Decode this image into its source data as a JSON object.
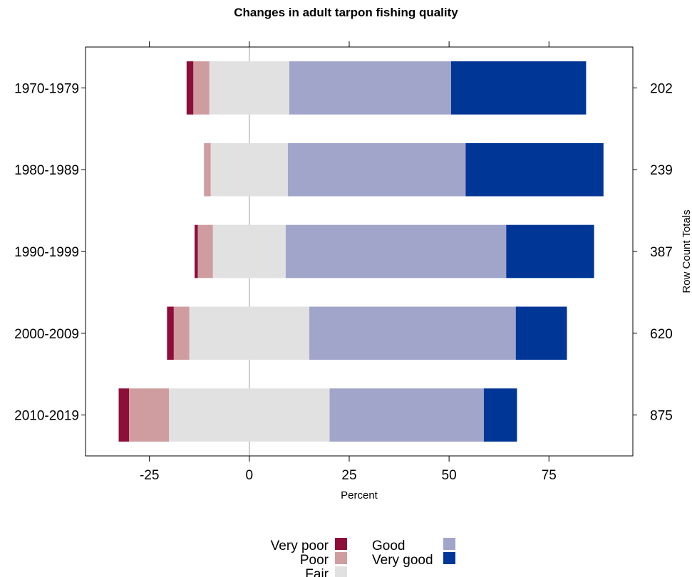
{
  "chart_data": {
    "type": "bar",
    "subtype": "diverging-stacked-horizontal",
    "title": "Changes in adult tarpon fishing quality",
    "xlabel": "Percent",
    "ylabel": "",
    "y2label": "Row Count Totals",
    "xlim": [
      -41,
      96
    ],
    "xticks": [
      -25,
      0,
      25,
      50,
      75
    ],
    "grid": false,
    "legend_position": "bottom",
    "categories": [
      "1970-1979",
      "1980-1989",
      "1990-1999",
      "2000-2009",
      "2010-2019"
    ],
    "row_totals": [
      "202",
      "239",
      "387",
      "620",
      "875"
    ],
    "series": [
      {
        "name": "Very poor",
        "color": "#8e0e3a",
        "values": [
          1.7,
          0.0,
          0.8,
          1.7,
          2.6
        ]
      },
      {
        "name": "Poor",
        "color": "#cf9d9f",
        "values": [
          4.0,
          1.7,
          3.8,
          3.9,
          10.0
        ]
      },
      {
        "name": "Fair",
        "color": "#e1e1e1",
        "values": [
          20.0,
          19.3,
          18.2,
          30.0,
          40.2
        ]
      },
      {
        "name": "Good",
        "color": "#a2a5ca",
        "values": [
          40.5,
          44.5,
          55.2,
          51.7,
          38.6
        ]
      },
      {
        "name": "Very good",
        "color": "#003696",
        "values": [
          33.8,
          34.5,
          22.0,
          12.8,
          8.3
        ]
      }
    ]
  }
}
